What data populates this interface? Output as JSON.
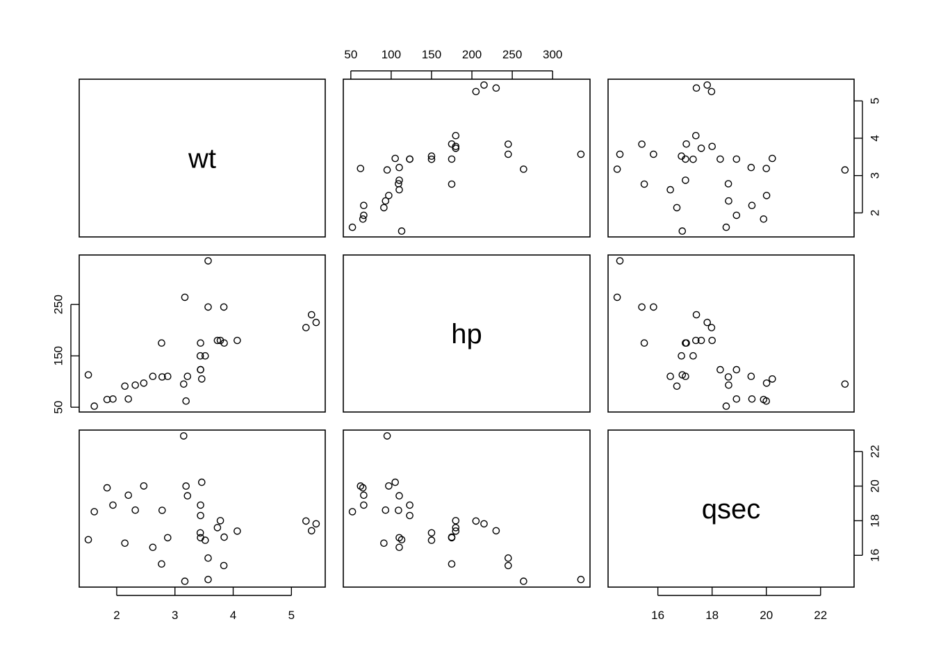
{
  "chart_data": {
    "type": "scatter",
    "variables": [
      {
        "name": "wt",
        "range": [
          1.513,
          5.424
        ],
        "ticks": [
          2,
          3,
          4,
          5
        ]
      },
      {
        "name": "hp",
        "range": [
          52,
          335
        ],
        "ticks": [
          50,
          100,
          150,
          200,
          250,
          300
        ],
        "left_ticks": [
          50,
          150,
          250
        ]
      },
      {
        "name": "qsec",
        "range": [
          14.5,
          22.9
        ],
        "ticks": [
          16,
          18,
          20,
          22
        ]
      }
    ],
    "axes": {
      "top_panel_col": 1,
      "bottom_panel_cols": [
        0,
        2
      ],
      "left_panel_row": 1,
      "right_panel_rows": [
        0,
        2
      ]
    },
    "observations": {
      "wt": [
        2.62,
        2.875,
        2.32,
        3.215,
        3.44,
        3.46,
        3.57,
        3.19,
        3.15,
        3.44,
        3.44,
        4.07,
        3.73,
        3.78,
        5.25,
        5.424,
        5.345,
        2.2,
        1.615,
        1.835,
        2.465,
        3.52,
        3.435,
        3.84,
        3.845,
        1.935,
        2.14,
        1.513,
        3.17,
        2.77,
        3.57,
        2.78
      ],
      "hp": [
        110,
        110,
        93,
        110,
        175,
        105,
        245,
        62,
        95,
        123,
        123,
        180,
        180,
        180,
        205,
        215,
        230,
        66,
        52,
        65,
        97,
        150,
        150,
        245,
        175,
        66,
        91,
        113,
        264,
        175,
        335,
        109
      ],
      "qsec": [
        16.46,
        17.02,
        18.61,
        19.44,
        17.02,
        20.22,
        15.84,
        20.0,
        22.9,
        18.3,
        18.9,
        17.4,
        17.6,
        18.0,
        17.98,
        17.82,
        17.42,
        19.47,
        18.52,
        19.9,
        20.01,
        16.87,
        17.3,
        15.41,
        17.05,
        18.9,
        16.7,
        16.9,
        14.5,
        15.5,
        14.6,
        18.6
      ]
    }
  }
}
